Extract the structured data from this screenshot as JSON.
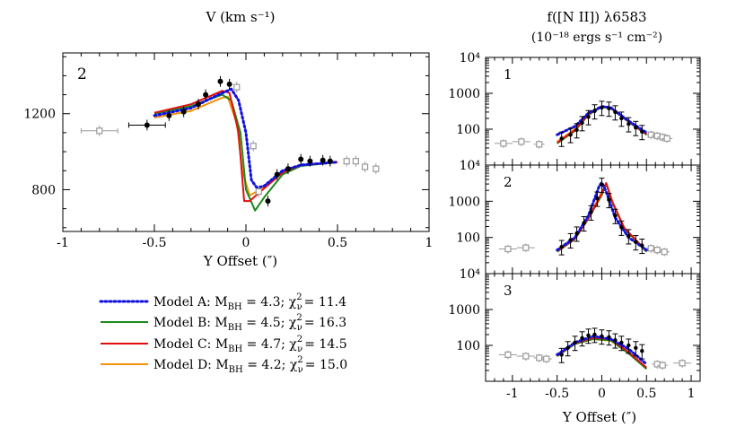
{
  "colors": {
    "model_a": "#1010e0",
    "model_b": "#1a8a1a",
    "model_c": "#e01010",
    "model_d": "#f5900a",
    "data_black": "#000000",
    "data_gray": "#9a9a9a"
  },
  "legend": {
    "items": [
      {
        "id": "A",
        "text": "Model A: M",
        "sub": "BH",
        "mid": " = 4.3; χ",
        "sup2": "2",
        "subnu": "ν",
        "end": "= 11.4",
        "style": "dotted"
      },
      {
        "id": "B",
        "text": "Model B: M",
        "sub": "BH",
        "mid": " = 4.5; χ",
        "sup2": "2",
        "subnu": "ν",
        "end": "= 16.3",
        "style": "solid"
      },
      {
        "id": "C",
        "text": "Model C: M",
        "sub": "BH",
        "mid": " = 4.7; χ",
        "sup2": "2",
        "subnu": "ν",
        "end": "= 14.5",
        "style": "solid"
      },
      {
        "id": "D",
        "text": "Model D: M",
        "sub": "BH",
        "mid": " = 4.2; χ",
        "sup2": "2",
        "subnu": "ν",
        "end": "= 15.0",
        "style": "solid"
      }
    ]
  },
  "chart_data": [
    {
      "type": "scatter",
      "title": "V (km s⁻¹)",
      "xlabel": "Y Offset (″)",
      "panel_label": "2",
      "xlim": [
        -1.0,
        1.0
      ],
      "ylim": [
        580,
        1520
      ],
      "xticks": [
        "-1",
        "-0.5",
        "0",
        "0.5",
        "1"
      ],
      "yticks": [
        "800",
        "1200"
      ],
      "data_black": [
        {
          "x": -0.54,
          "y": 1140,
          "xerr": 0.1
        },
        {
          "x": -0.42,
          "y": 1190
        },
        {
          "x": -0.34,
          "y": 1210
        },
        {
          "x": -0.26,
          "y": 1250
        },
        {
          "x": -0.22,
          "y": 1300
        },
        {
          "x": -0.14,
          "y": 1370
        },
        {
          "x": -0.09,
          "y": 1355
        },
        {
          "x": 0.12,
          "y": 740
        },
        {
          "x": 0.17,
          "y": 880
        },
        {
          "x": 0.23,
          "y": 910
        },
        {
          "x": 0.3,
          "y": 960
        },
        {
          "x": 0.35,
          "y": 950
        },
        {
          "x": 0.42,
          "y": 955
        },
        {
          "x": 0.46,
          "y": 950
        }
      ],
      "data_gray": [
        {
          "x": -0.8,
          "y": 1110,
          "xerr": 0.1
        },
        {
          "x": -0.05,
          "y": 1340
        },
        {
          "x": 0.04,
          "y": 1030
        },
        {
          "x": 0.07,
          "y": 790
        },
        {
          "x": 0.55,
          "y": 950
        },
        {
          "x": 0.6,
          "y": 950
        },
        {
          "x": 0.65,
          "y": 920
        },
        {
          "x": 0.71,
          "y": 910
        }
      ],
      "models": {
        "A": [
          [
            -0.5,
            1190
          ],
          [
            -0.3,
            1230
          ],
          [
            -0.15,
            1300
          ],
          [
            -0.08,
            1330
          ],
          [
            -0.04,
            1270
          ],
          [
            0.0,
            1100
          ],
          [
            0.03,
            850
          ],
          [
            0.06,
            810
          ],
          [
            0.1,
            820
          ],
          [
            0.2,
            900
          ],
          [
            0.3,
            930
          ],
          [
            0.5,
            945
          ]
        ],
        "B": [
          [
            -0.5,
            1200
          ],
          [
            -0.3,
            1240
          ],
          [
            -0.13,
            1300
          ],
          [
            -0.08,
            1270
          ],
          [
            -0.03,
            1100
          ],
          [
            0.0,
            800
          ],
          [
            0.05,
            690
          ],
          [
            0.1,
            760
          ],
          [
            0.2,
            880
          ],
          [
            0.3,
            925
          ],
          [
            0.5,
            945
          ]
        ],
        "C": [
          [
            -0.5,
            1205
          ],
          [
            -0.3,
            1250
          ],
          [
            -0.13,
            1320
          ],
          [
            -0.09,
            1310
          ],
          [
            -0.04,
            1100
          ],
          [
            -0.01,
            740
          ],
          [
            0.02,
            740
          ],
          [
            0.08,
            790
          ],
          [
            0.2,
            890
          ],
          [
            0.3,
            930
          ],
          [
            0.5,
            945
          ]
        ],
        "D": [
          [
            -0.5,
            1180
          ],
          [
            -0.3,
            1215
          ],
          [
            -0.14,
            1280
          ],
          [
            -0.1,
            1290
          ],
          [
            -0.05,
            1150
          ],
          [
            -0.02,
            900
          ],
          [
            0.02,
            770
          ],
          [
            0.08,
            800
          ],
          [
            0.2,
            895
          ],
          [
            0.3,
            930
          ],
          [
            0.5,
            945
          ]
        ]
      }
    },
    {
      "type": "scatter",
      "title_line1": "f([N II]) λ6583",
      "title_line2": "(10⁻¹⁸ ergs s⁻¹ cm⁻²)",
      "xlabel": "Y Offset (″)",
      "yscale": "log",
      "ylim": [
        10,
        10000
      ],
      "xlim": [
        -1.3,
        1.1
      ],
      "xticks": [
        "-1",
        "-0.5",
        "0",
        "0.5",
        "1"
      ],
      "yticks": [
        "100",
        "1000",
        "10⁴"
      ],
      "panels": [
        {
          "label": "1",
          "data_black": [
            [
              -0.45,
              55
            ],
            [
              -0.35,
              70
            ],
            [
              -0.28,
              95
            ],
            [
              -0.22,
              150
            ],
            [
              -0.15,
              220
            ],
            [
              -0.08,
              320
            ],
            [
              0.0,
              400
            ],
            [
              0.08,
              380
            ],
            [
              0.15,
              300
            ],
            [
              0.22,
              200
            ],
            [
              0.3,
              140
            ],
            [
              0.38,
              110
            ],
            [
              0.45,
              85
            ]
          ],
          "data_gray": [
            [
              -1.1,
              40
            ],
            [
              -0.9,
              45
            ],
            [
              -0.7,
              38
            ],
            [
              0.55,
              70
            ],
            [
              0.62,
              65
            ],
            [
              0.68,
              60
            ],
            [
              0.73,
              55
            ]
          ],
          "models": {
            "A": [
              [
                -0.5,
                70
              ],
              [
                -0.3,
                120
              ],
              [
                -0.15,
                280
              ],
              [
                0.0,
                430
              ],
              [
                0.1,
                400
              ],
              [
                0.3,
                170
              ],
              [
                0.5,
                80
              ]
            ],
            "B": [
              [
                -0.5,
                40
              ],
              [
                -0.3,
                90
              ],
              [
                -0.15,
                250
              ],
              [
                0.0,
                420
              ],
              [
                0.1,
                390
              ],
              [
                0.3,
                160
              ],
              [
                0.5,
                70
              ]
            ],
            "C": [
              [
                -0.5,
                42
              ],
              [
                -0.3,
                95
              ],
              [
                -0.15,
                260
              ],
              [
                0.0,
                440
              ],
              [
                0.1,
                400
              ],
              [
                0.3,
                165
              ],
              [
                0.5,
                72
              ]
            ],
            "D": [
              [
                -0.5,
                45
              ],
              [
                -0.3,
                100
              ],
              [
                -0.15,
                270
              ],
              [
                0.0,
                410
              ],
              [
                0.1,
                380
              ],
              [
                0.3,
                160
              ],
              [
                0.5,
                75
              ]
            ]
          }
        },
        {
          "label": "2",
          "data_black": [
            [
              -0.45,
              55
            ],
            [
              -0.35,
              85
            ],
            [
              -0.28,
              130
            ],
            [
              -0.2,
              250
            ],
            [
              -0.12,
              500
            ],
            [
              -0.05,
              1200
            ],
            [
              0.0,
              2900
            ],
            [
              0.08,
              1100
            ],
            [
              0.15,
              400
            ],
            [
              0.22,
              190
            ],
            [
              0.3,
              110
            ],
            [
              0.38,
              75
            ],
            [
              0.45,
              60
            ]
          ],
          "data_gray": [
            [
              -1.05,
              48
            ],
            [
              -0.85,
              52
            ],
            [
              0.55,
              50
            ],
            [
              0.62,
              45
            ],
            [
              0.7,
              40
            ]
          ],
          "models": {
            "A": [
              [
                -0.5,
                45
              ],
              [
                -0.3,
                100
              ],
              [
                -0.15,
                400
              ],
              [
                -0.03,
                2600
              ],
              [
                0.0,
                3300
              ],
              [
                0.05,
                1800
              ],
              [
                0.15,
                350
              ],
              [
                0.3,
                100
              ],
              [
                0.5,
                45
              ]
            ],
            "B": [
              [
                -0.5,
                40
              ],
              [
                -0.3,
                90
              ],
              [
                -0.15,
                330
              ],
              [
                0.0,
                1500
              ],
              [
                0.05,
                3100
              ],
              [
                0.12,
                900
              ],
              [
                0.25,
                180
              ],
              [
                0.5,
                40
              ]
            ],
            "C": [
              [
                -0.5,
                42
              ],
              [
                -0.3,
                92
              ],
              [
                -0.15,
                340
              ],
              [
                0.0,
                1600
              ],
              [
                0.05,
                3200
              ],
              [
                0.12,
                950
              ],
              [
                0.25,
                185
              ],
              [
                0.5,
                42
              ]
            ],
            "D": [
              [
                -0.5,
                44
              ],
              [
                -0.3,
                95
              ],
              [
                -0.15,
                360
              ],
              [
                0.0,
                1800
              ],
              [
                0.05,
                3000
              ],
              [
                0.12,
                900
              ],
              [
                0.25,
                180
              ],
              [
                0.5,
                43
              ]
            ]
          }
        },
        {
          "label": "3",
          "data_black": [
            [
              -0.45,
              55
            ],
            [
              -0.38,
              85
            ],
            [
              -0.3,
              120
            ],
            [
              -0.22,
              160
            ],
            [
              -0.15,
              190
            ],
            [
              -0.08,
              200
            ],
            [
              0.0,
              180
            ],
            [
              0.08,
              170
            ],
            [
              0.15,
              140
            ],
            [
              0.22,
              120
            ],
            [
              0.3,
              100
            ],
            [
              0.38,
              85
            ],
            [
              0.45,
              70
            ]
          ],
          "data_gray": [
            [
              -1.05,
              55
            ],
            [
              -0.85,
              50
            ],
            [
              -0.7,
              45
            ],
            [
              -0.62,
              42
            ],
            [
              0.62,
              30
            ],
            [
              0.68,
              28
            ],
            [
              0.9,
              32
            ]
          ],
          "models": {
            "A": [
              [
                -0.5,
                55
              ],
              [
                -0.3,
                120
              ],
              [
                -0.1,
                180
              ],
              [
                0.1,
                150
              ],
              [
                0.3,
                80
              ],
              [
                0.5,
                30
              ]
            ],
            "B": [
              [
                -0.5,
                50
              ],
              [
                -0.3,
                110
              ],
              [
                -0.1,
                150
              ],
              [
                0.1,
                140
              ],
              [
                0.3,
                60
              ],
              [
                0.5,
                22
              ]
            ],
            "C": [
              [
                -0.5,
                52
              ],
              [
                -0.3,
                115
              ],
              [
                -0.1,
                160
              ],
              [
                0.1,
                150
              ],
              [
                0.3,
                65
              ],
              [
                0.5,
                24
              ]
            ],
            "D": [
              [
                -0.5,
                50
              ],
              [
                -0.3,
                110
              ],
              [
                -0.1,
                150
              ],
              [
                0.1,
                135
              ],
              [
                0.3,
                60
              ],
              [
                0.5,
                22
              ]
            ]
          }
        }
      ]
    }
  ]
}
